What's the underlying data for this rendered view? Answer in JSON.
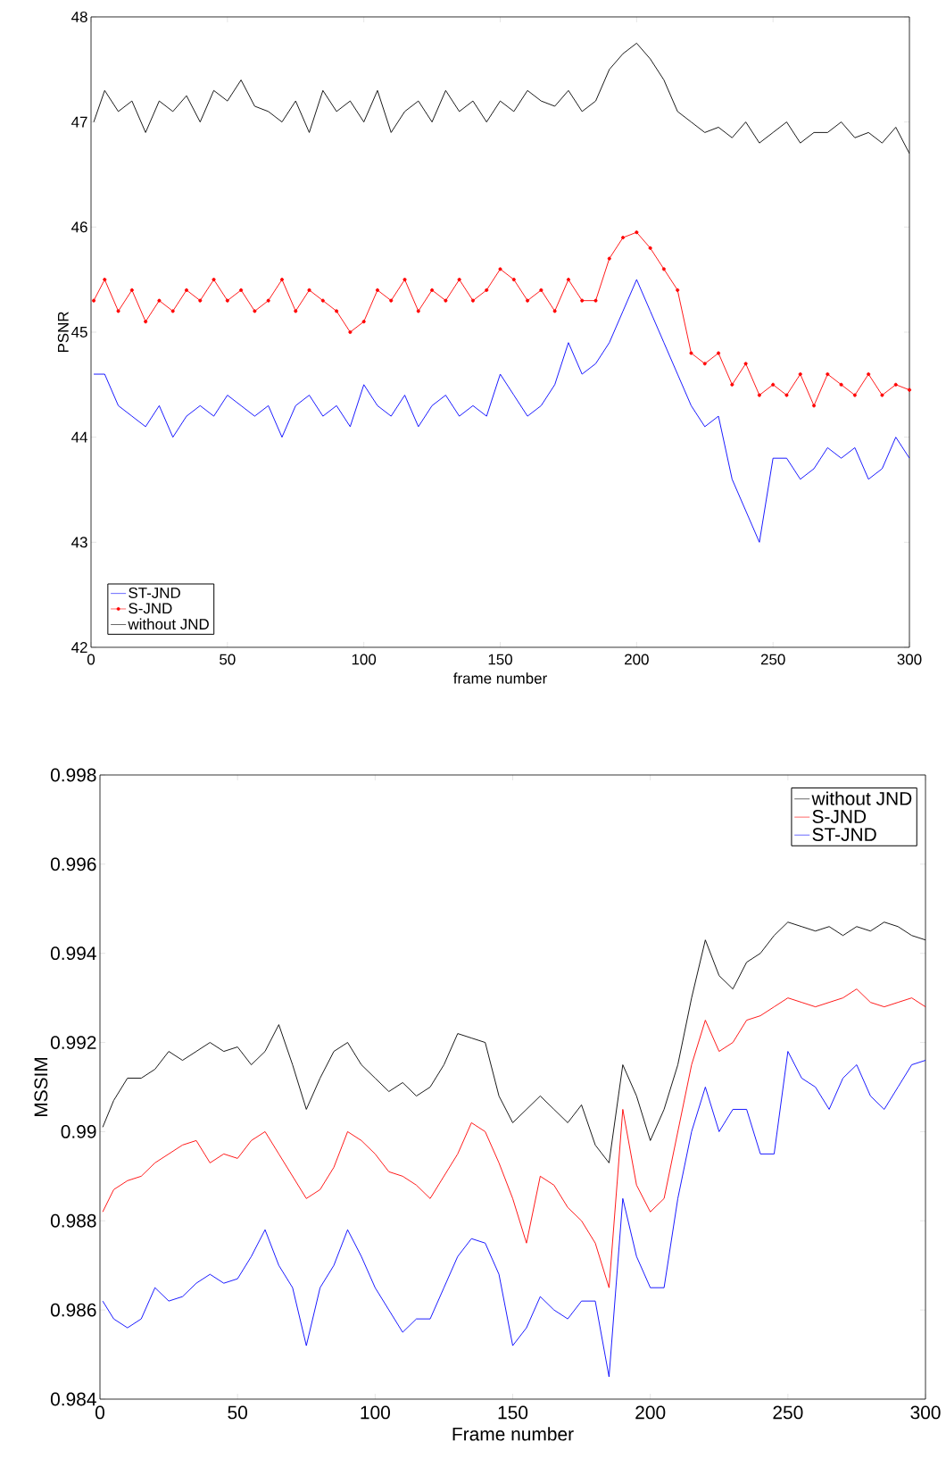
{
  "chart_data": [
    {
      "type": "line",
      "xlabel": "frame number",
      "ylabel": "PSNR",
      "xlim": [
        0,
        300
      ],
      "ylim": [
        42,
        48
      ],
      "xticks": [
        0,
        50,
        100,
        150,
        200,
        250,
        300
      ],
      "yticks": [
        42,
        43,
        44,
        45,
        46,
        47,
        48
      ],
      "grid": false,
      "legend": "bottom left",
      "x": [
        1,
        5,
        10,
        15,
        20,
        25,
        30,
        35,
        40,
        45,
        50,
        55,
        60,
        65,
        70,
        75,
        80,
        85,
        90,
        95,
        100,
        105,
        110,
        115,
        120,
        125,
        130,
        135,
        140,
        145,
        150,
        155,
        160,
        165,
        170,
        175,
        180,
        185,
        190,
        195,
        200,
        205,
        210,
        215,
        220,
        225,
        230,
        235,
        240,
        245,
        250,
        255,
        260,
        265,
        270,
        275,
        280,
        285,
        290,
        295,
        300
      ],
      "series": [
        {
          "name": "ST-JND",
          "color": "#0000ff",
          "marker": "none",
          "values": [
            44.6,
            44.6,
            44.3,
            44.2,
            44.1,
            44.3,
            44.0,
            44.2,
            44.3,
            44.2,
            44.4,
            44.3,
            44.2,
            44.3,
            44.0,
            44.3,
            44.4,
            44.2,
            44.3,
            44.1,
            44.5,
            44.3,
            44.2,
            44.4,
            44.1,
            44.3,
            44.4,
            44.2,
            44.3,
            44.2,
            44.6,
            44.4,
            44.2,
            44.3,
            44.5,
            44.9,
            44.6,
            44.7,
            44.9,
            45.2,
            45.5,
            45.2,
            44.9,
            44.6,
            44.3,
            44.1,
            44.2,
            43.6,
            43.3,
            43.0,
            43.8,
            43.8,
            43.6,
            43.7,
            43.9,
            43.8,
            43.9,
            43.6,
            43.7,
            44.0,
            43.8
          ]
        },
        {
          "name": "S-JND",
          "color": "#ff0000",
          "marker": "circle",
          "values": [
            45.3,
            45.5,
            45.2,
            45.4,
            45.1,
            45.3,
            45.2,
            45.4,
            45.3,
            45.5,
            45.3,
            45.4,
            45.2,
            45.3,
            45.5,
            45.2,
            45.4,
            45.3,
            45.2,
            45.0,
            45.1,
            45.4,
            45.3,
            45.5,
            45.2,
            45.4,
            45.3,
            45.5,
            45.3,
            45.4,
            45.6,
            45.5,
            45.3,
            45.4,
            45.2,
            45.5,
            45.3,
            45.3,
            45.7,
            45.9,
            45.95,
            45.8,
            45.6,
            45.4,
            44.8,
            44.7,
            44.8,
            44.5,
            44.7,
            44.4,
            44.5,
            44.4,
            44.6,
            44.3,
            44.6,
            44.5,
            44.4,
            44.6,
            44.4,
            44.5,
            44.45
          ]
        },
        {
          "name": "without JND",
          "color": "#000000",
          "marker": "none",
          "values": [
            47.0,
            47.3,
            47.1,
            47.2,
            46.9,
            47.2,
            47.1,
            47.25,
            47.0,
            47.3,
            47.2,
            47.4,
            47.15,
            47.1,
            47.0,
            47.2,
            46.9,
            47.3,
            47.1,
            47.2,
            47.0,
            47.3,
            46.9,
            47.1,
            47.2,
            47.0,
            47.3,
            47.1,
            47.2,
            47.0,
            47.2,
            47.1,
            47.3,
            47.2,
            47.15,
            47.3,
            47.1,
            47.2,
            47.5,
            47.65,
            47.75,
            47.6,
            47.4,
            47.1,
            47.0,
            46.9,
            46.95,
            46.85,
            47.0,
            46.8,
            46.9,
            47.0,
            46.8,
            46.9,
            46.9,
            47.0,
            46.85,
            46.9,
            46.8,
            46.95,
            46.7
          ]
        }
      ]
    },
    {
      "type": "line",
      "xlabel": "Frame number",
      "ylabel": "MSSIM",
      "xlim": [
        0,
        300
      ],
      "ylim": [
        0.984,
        0.998
      ],
      "xticks": [
        0,
        50,
        100,
        150,
        200,
        250,
        300
      ],
      "yticks": [
        0.984,
        0.986,
        0.988,
        0.99,
        0.992,
        0.994,
        0.996,
        0.998
      ],
      "grid": false,
      "legend": "top right",
      "x": [
        1,
        5,
        10,
        15,
        20,
        25,
        30,
        35,
        40,
        45,
        50,
        55,
        60,
        65,
        70,
        75,
        80,
        85,
        90,
        95,
        100,
        105,
        110,
        115,
        120,
        125,
        130,
        135,
        140,
        145,
        150,
        155,
        160,
        165,
        170,
        175,
        180,
        185,
        190,
        195,
        200,
        205,
        210,
        215,
        220,
        225,
        230,
        235,
        240,
        245,
        250,
        255,
        260,
        265,
        270,
        275,
        280,
        285,
        290,
        295,
        300
      ],
      "series": [
        {
          "name": "without JND",
          "color": "#000000",
          "marker": "none",
          "values": [
            0.9901,
            0.9907,
            0.9912,
            0.9912,
            0.9914,
            0.9918,
            0.9916,
            0.9918,
            0.992,
            0.9918,
            0.9919,
            0.9915,
            0.9918,
            0.9924,
            0.9915,
            0.9905,
            0.9912,
            0.9918,
            0.992,
            0.9915,
            0.9912,
            0.9909,
            0.9911,
            0.9908,
            0.991,
            0.9915,
            0.9922,
            0.9921,
            0.992,
            0.9908,
            0.9902,
            0.9905,
            0.9908,
            0.9905,
            0.9902,
            0.9906,
            0.9897,
            0.9893,
            0.9915,
            0.9908,
            0.9898,
            0.9905,
            0.9915,
            0.993,
            0.9943,
            0.9935,
            0.9932,
            0.9938,
            0.994,
            0.9944,
            0.9947,
            0.9946,
            0.9945,
            0.9946,
            0.9944,
            0.9946,
            0.9945,
            0.9947,
            0.9946,
            0.9944,
            0.9943
          ]
        },
        {
          "name": "S-JND",
          "color": "#ff0000",
          "marker": "none",
          "values": [
            0.9882,
            0.9887,
            0.9889,
            0.989,
            0.9893,
            0.9895,
            0.9897,
            0.9898,
            0.9893,
            0.9895,
            0.9894,
            0.9898,
            0.99,
            0.9895,
            0.989,
            0.9885,
            0.9887,
            0.9892,
            0.99,
            0.9898,
            0.9895,
            0.9891,
            0.989,
            0.9888,
            0.9885,
            0.989,
            0.9895,
            0.9902,
            0.99,
            0.9893,
            0.9885,
            0.9875,
            0.989,
            0.9888,
            0.9883,
            0.988,
            0.9875,
            0.9865,
            0.9905,
            0.9888,
            0.9882,
            0.9885,
            0.99,
            0.9915,
            0.9925,
            0.9918,
            0.992,
            0.9925,
            0.9926,
            0.9928,
            0.993,
            0.9929,
            0.9928,
            0.9929,
            0.993,
            0.9932,
            0.9929,
            0.9928,
            0.9929,
            0.993,
            0.9928
          ]
        },
        {
          "name": "ST-JND",
          "color": "#0000ff",
          "marker": "none",
          "values": [
            0.9862,
            0.9858,
            0.9856,
            0.9858,
            0.9865,
            0.9862,
            0.9863,
            0.9866,
            0.9868,
            0.9866,
            0.9867,
            0.9872,
            0.9878,
            0.987,
            0.9865,
            0.9852,
            0.9865,
            0.987,
            0.9878,
            0.9872,
            0.9865,
            0.986,
            0.9855,
            0.9858,
            0.9858,
            0.9865,
            0.9872,
            0.9876,
            0.9875,
            0.9868,
            0.9852,
            0.9856,
            0.9863,
            0.986,
            0.9858,
            0.9862,
            0.9862,
            0.9845,
            0.9885,
            0.9872,
            0.9865,
            0.9865,
            0.9885,
            0.99,
            0.991,
            0.99,
            0.9905,
            0.9905,
            0.9895,
            0.9895,
            0.9918,
            0.9912,
            0.991,
            0.9905,
            0.9912,
            0.9915,
            0.9908,
            0.9905,
            0.991,
            0.9915,
            0.9916
          ]
        }
      ]
    }
  ]
}
